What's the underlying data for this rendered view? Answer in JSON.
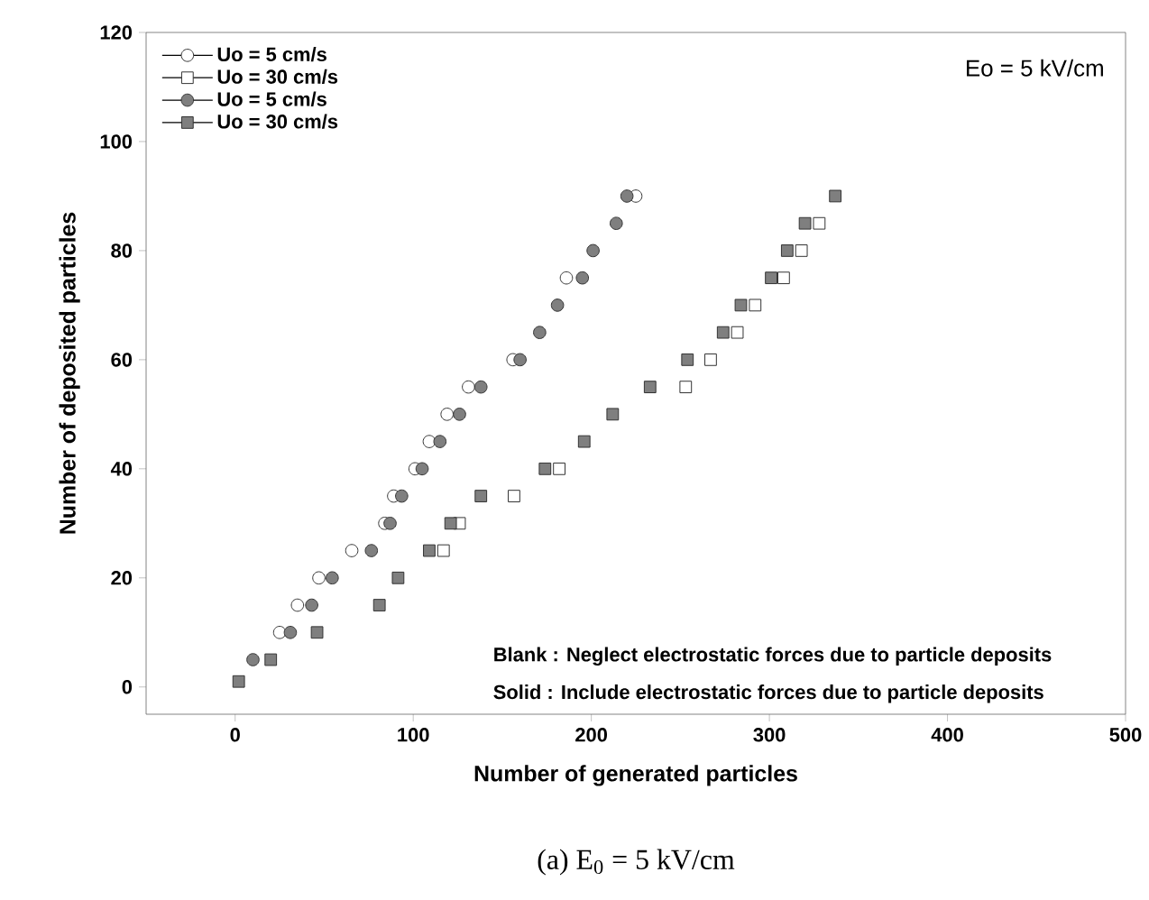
{
  "chart_data": {
    "type": "scatter",
    "xlabel": "Number of generated particles",
    "ylabel": "Number of deposited particles",
    "xlim": [
      -50,
      500
    ],
    "xticks": [
      0,
      100,
      200,
      300,
      400,
      500
    ],
    "ylim": [
      -5,
      120
    ],
    "yticks": [
      0,
      20,
      40,
      60,
      80,
      100,
      120
    ],
    "legend": "top left",
    "grid": false,
    "series": [
      {
        "name": "Uo =   5 cm/s",
        "color": "#ffffff",
        "marker": "circle",
        "x": [
          25,
          35,
          47,
          65.5,
          84,
          89,
          101,
          109,
          119,
          131,
          156,
          186,
          225
        ],
        "values": [
          10,
          15,
          20,
          25,
          30,
          35,
          40,
          45,
          50,
          55,
          60,
          75,
          90
        ]
      },
      {
        "name": "Uo = 30 cm/s",
        "color": "#ffffff",
        "marker": "square",
        "x": [
          117,
          126,
          156.6,
          182,
          253,
          267,
          282,
          292,
          308,
          318,
          328
        ],
        "values": [
          25,
          30,
          35,
          40,
          55,
          60,
          65,
          70,
          75,
          80,
          85
        ]
      },
      {
        "name": "Uo =   5 cm/s",
        "color": "#7f7f7f",
        "marker": "circle",
        "x": [
          10,
          31,
          43,
          54.5,
          76.5,
          87,
          93.5,
          105,
          115,
          126,
          138,
          160,
          171,
          181,
          195,
          201,
          214,
          220
        ],
        "values": [
          5,
          10,
          15,
          20,
          25,
          30,
          35,
          40,
          45,
          50,
          55,
          60,
          65,
          70,
          75,
          80,
          85,
          90
        ]
      },
      {
        "name": "Uo = 30 cm/s",
        "color": "#7f7f7f",
        "marker": "square",
        "x": [
          2,
          20,
          46,
          81,
          91.5,
          109,
          121,
          138,
          174,
          196,
          212,
          233,
          254,
          274,
          284,
          301,
          310,
          320,
          337
        ],
        "values": [
          1,
          5,
          10,
          15,
          20,
          25,
          30,
          35,
          40,
          45,
          50,
          55,
          60,
          65,
          70,
          75,
          80,
          85,
          90
        ]
      }
    ],
    "annotations": [
      "Eo = 5 kV/cm",
      "Blank : Neglect electrostatic forces due to particle deposits",
      "Solid  : Include electrostatic forces due to particle deposits",
      "(a) E$_{0}$ = 5 kV/cm"
    ]
  }
}
